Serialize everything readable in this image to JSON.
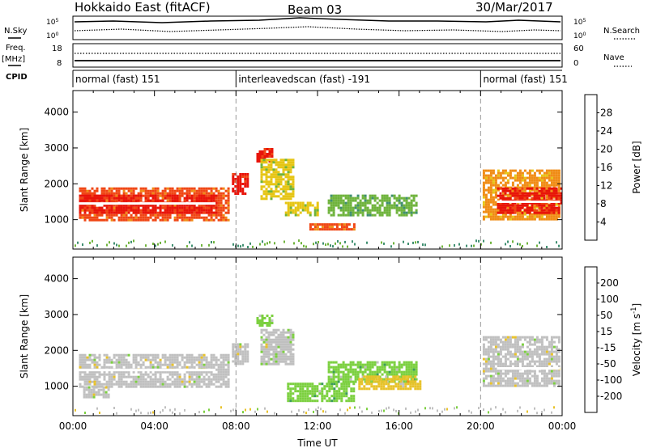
{
  "header": {
    "title": "Hokkaido East (fitACF)",
    "beam": "Beam 03",
    "date": "30/Mar/2017"
  },
  "strip_labels": {
    "nsky": "N.Sky",
    "nsearch": "N.Search",
    "freq": "Freq.",
    "freq_unit": "[MHz]",
    "nave": "Nave",
    "cpid": "CPID",
    "noise_top": "10^5",
    "noise_bottom": "10^0",
    "freq_top": "18",
    "freq_bottom": "8",
    "nave_top": "60",
    "nave_bottom": "0"
  },
  "cpid_segments": [
    {
      "start": "00:00",
      "label": "normal (fast) 151"
    },
    {
      "start": "08:00",
      "label": "interleavedscan (fast) -191"
    },
    {
      "start": "20:00",
      "label": "normal (fast) 151"
    }
  ],
  "colorbars": {
    "power": {
      "label": "Power [dB]",
      "ticks": [
        "4",
        "8",
        "12",
        "16",
        "20",
        "24",
        "28"
      ],
      "colors": [
        "#1b14f5",
        "#2a5aa8",
        "#3f8f70",
        "#6fb33c",
        "#e6c514",
        "#f08c14",
        "#f04614",
        "#e8140a"
      ]
    },
    "velocity": {
      "label": "Velocity [m s^-1]",
      "ticks": [
        "200",
        "100",
        "50",
        "15",
        "-15",
        "-50",
        "-100",
        "-200"
      ],
      "colors": [
        "#2320c8",
        "#2a6fb0",
        "#3b9c5a",
        "#7cd040",
        "#c0c0c0",
        "#e8c22a",
        "#f0901e",
        "#ee5a14",
        "#e01a0a"
      ]
    }
  },
  "chart_data": [
    {
      "type": "heatmap",
      "title": "Power",
      "xlabel": "Time UT",
      "ylabel": "Slant Range [km]",
      "x_ticks": [
        "00:00",
        "04:00",
        "08:00",
        "12:00",
        "16:00",
        "20:00",
        "00:00"
      ],
      "y_ticks": [
        1000,
        2000,
        3000,
        4000
      ],
      "xlim": [
        "00:00",
        "24:00"
      ],
      "ylim": [
        180,
        4600
      ],
      "colorbar": "Power [dB]",
      "regions": [
        {
          "t0": 0.3,
          "t1": 7.6,
          "r0": 1000,
          "r1": 1900,
          "value": 24
        },
        {
          "t0": 0.3,
          "t1": 7.0,
          "r0": 1200,
          "r1": 1700,
          "value": 29
        },
        {
          "t0": 7.8,
          "t1": 8.6,
          "r0": 1700,
          "r1": 2300,
          "value": 28
        },
        {
          "t0": 9.0,
          "t1": 9.8,
          "r0": 2600,
          "r1": 3000,
          "value": 29
        },
        {
          "t0": 9.2,
          "t1": 10.8,
          "r0": 1600,
          "r1": 2700,
          "value": 18
        },
        {
          "t0": 10.4,
          "t1": 12.0,
          "r0": 1100,
          "r1": 1500,
          "value": 16
        },
        {
          "t0": 11.6,
          "t1": 13.8,
          "r0": 700,
          "r1": 900,
          "value": 24
        },
        {
          "t0": 12.5,
          "t1": 16.8,
          "r0": 1100,
          "r1": 1700,
          "value": 12
        },
        {
          "t0": 20.1,
          "t1": 23.9,
          "r0": 1000,
          "r1": 2400,
          "value": 22
        },
        {
          "t0": 20.8,
          "t1": 23.9,
          "r0": 1200,
          "r1": 1900,
          "value": 29
        }
      ]
    },
    {
      "type": "heatmap",
      "title": "Velocity",
      "xlabel": "Time UT",
      "ylabel": "Slant Range [km]",
      "x_ticks": [
        "00:00",
        "04:00",
        "08:00",
        "12:00",
        "16:00",
        "20:00",
        "00:00"
      ],
      "y_ticks": [
        1000,
        2000,
        3000,
        4000
      ],
      "xlim": [
        "00:00",
        "24:00"
      ],
      "ylim": [
        180,
        4600
      ],
      "colorbar": "Velocity [m s^-1]",
      "regions": [
        {
          "t0": 0.3,
          "t1": 7.6,
          "r0": 1000,
          "r1": 1900,
          "value": 0
        },
        {
          "t0": 0.5,
          "t1": 1.8,
          "r0": 700,
          "r1": 1000,
          "value": 0
        },
        {
          "t0": 7.8,
          "t1": 8.6,
          "r0": 1600,
          "r1": 2200,
          "value": 0
        },
        {
          "t0": 9.0,
          "t1": 9.8,
          "r0": 2700,
          "r1": 3000,
          "value": 30
        },
        {
          "t0": 9.2,
          "t1": 10.8,
          "r0": 1600,
          "r1": 2600,
          "value": 10
        },
        {
          "t0": 10.5,
          "t1": 13.8,
          "r0": 600,
          "r1": 1100,
          "value": 40
        },
        {
          "t0": 12.5,
          "t1": 16.8,
          "r0": 1100,
          "r1": 1700,
          "value": 35
        },
        {
          "t0": 14.0,
          "t1": 17.0,
          "r0": 900,
          "r1": 1300,
          "value": -30
        },
        {
          "t0": 20.1,
          "t1": 23.9,
          "r0": 1000,
          "r1": 2400,
          "value": 0
        }
      ]
    }
  ]
}
